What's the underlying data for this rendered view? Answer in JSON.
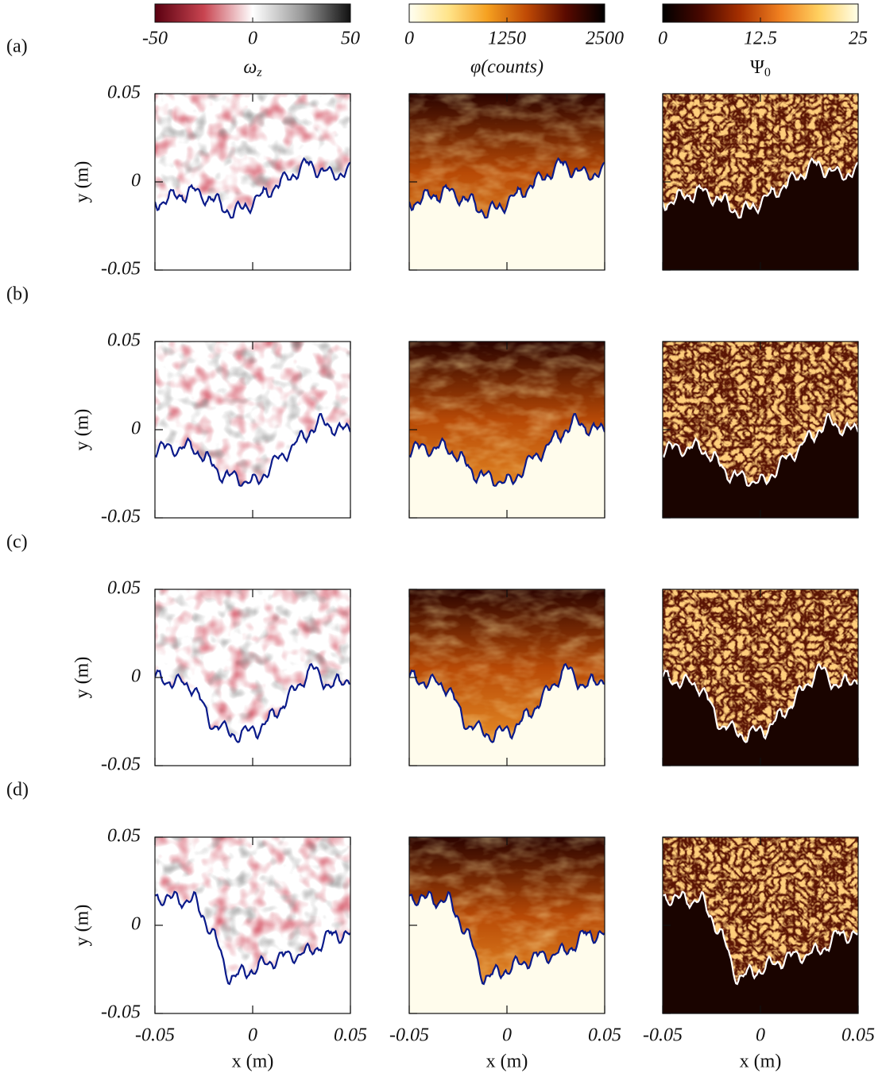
{
  "row_labels": [
    "(a)",
    "(b)",
    "(c)",
    "(d)"
  ],
  "colorbars": [
    {
      "symbol": "ω",
      "subscript": "z",
      "lim": [
        -50,
        50
      ],
      "ticks": [
        -50,
        0,
        50
      ],
      "colors": [
        "#5a0010",
        "#c84450",
        "#ffffff",
        "#9a9a9a",
        "#111111"
      ]
    },
    {
      "label": "φ(counts)",
      "lim": [
        0,
        2500
      ],
      "ticks": [
        0,
        1250,
        2500
      ],
      "colors": [
        "#fffff2",
        "#ffe48a",
        "#f5a020",
        "#c04a05",
        "#5a0a00",
        "#000000"
      ]
    },
    {
      "symbol": "Ψ",
      "subscript": "0",
      "lim": [
        0,
        25
      ],
      "ticks": [
        0,
        12.5,
        25
      ],
      "colors": [
        "#000000",
        "#4a0800",
        "#a83000",
        "#f08020",
        "#ffd060",
        "#ffffe8"
      ]
    }
  ],
  "axes": {
    "xlim": [
      -0.05,
      0.05
    ],
    "xticks": [
      -0.05,
      0,
      0.05
    ],
    "ylim": [
      -0.05,
      0.05
    ],
    "yticks": [
      -0.05,
      0,
      0.05
    ],
    "xlabel": "x (m)",
    "ylabel": "y (m)"
  }
}
